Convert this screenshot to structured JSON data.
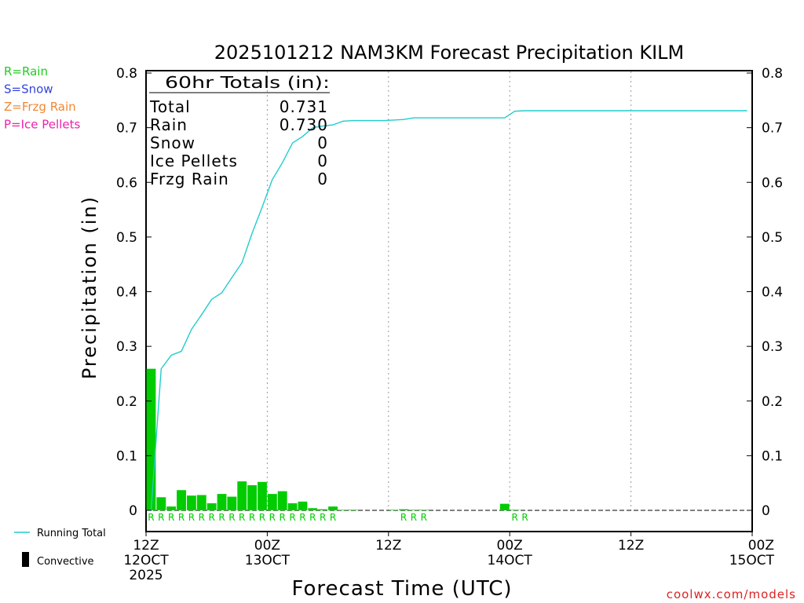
{
  "chart_data": {
    "type": "bar",
    "title": "2025101212 NAM3KM Forecast Precipitation KILM",
    "xlabel": "Forecast Time (UTC)",
    "ylabel": "Precipitation (in)",
    "ylim": [
      0,
      0.8
    ],
    "xlim_hours": [
      0,
      60
    ],
    "y_ticks": [
      0,
      0.1,
      0.2,
      0.3,
      0.4,
      0.5,
      0.6,
      0.7,
      0.8
    ],
    "y_tick_labels": [
      "0",
      "0.1",
      "0.2",
      "0.3",
      "0.4",
      "0.5",
      "0.6",
      "0.7",
      "0.8"
    ],
    "x_ticks": [
      {
        "hour": 0,
        "lines": [
          "12Z",
          "12OCT",
          "2025"
        ]
      },
      {
        "hour": 12,
        "lines": [
          "00Z",
          "13OCT"
        ]
      },
      {
        "hour": 24,
        "lines": [
          "12Z"
        ]
      },
      {
        "hour": 36,
        "lines": [
          "00Z",
          "14OCT"
        ]
      },
      {
        "hour": 48,
        "lines": [
          "12Z"
        ]
      },
      {
        "hour": 60,
        "lines": [
          "00Z",
          "15OCT"
        ]
      }
    ],
    "legend_types": [
      {
        "text": "R=Rain",
        "color": "#22cc22"
      },
      {
        "text": "S=Snow",
        "color": "#3344dd"
      },
      {
        "text": "Z=Frzg Rain",
        "color": "#ee8833"
      },
      {
        "text": "P=Ice Pellets",
        "color": "#ee22aa"
      }
    ],
    "legend_lines": {
      "running_total": "Running Total",
      "convective": "Convective"
    },
    "totals": {
      "heading": "60hr Totals (in):",
      "rows": [
        {
          "label": "Total",
          "value": "0.731"
        },
        {
          "label": "Rain",
          "value": "0.730"
        },
        {
          "label": "Snow",
          "value": "0"
        },
        {
          "label": "Ice Pellets",
          "value": "0"
        },
        {
          "label": "Frzg Rain",
          "value": "0"
        }
      ]
    },
    "bar_color": "#00cc00",
    "line_color": "#22cccc",
    "hourly_hours": [
      1,
      2,
      3,
      4,
      5,
      6,
      7,
      8,
      9,
      10,
      11,
      12,
      13,
      14,
      15,
      16,
      17,
      18,
      19,
      20,
      21,
      24,
      25,
      26,
      27,
      28,
      36,
      37
    ],
    "hourly_values": [
      0.259,
      0.024,
      0.007,
      0.037,
      0.027,
      0.028,
      0.013,
      0.03,
      0.025,
      0.053,
      0.046,
      0.052,
      0.03,
      0.035,
      0.013,
      0.016,
      0.004,
      0.002,
      0.007,
      0.001,
      0.001,
      0.0,
      0.001,
      0.002,
      0.001,
      0.001,
      0.012,
      0.001
    ],
    "ptype_marks": {
      "symbol": "R",
      "hours": [
        1,
        2,
        3,
        4,
        5,
        6,
        7,
        8,
        9,
        10,
        11,
        12,
        13,
        14,
        15,
        16,
        17,
        18,
        19,
        26,
        27,
        28,
        37,
        38
      ]
    },
    "running_total_hours": [
      1,
      2,
      3,
      4,
      5,
      6,
      7,
      8,
      9,
      10,
      11,
      12,
      13,
      14,
      15,
      16,
      17,
      18,
      19,
      20,
      21,
      22,
      23,
      24,
      25,
      26,
      27,
      28,
      29,
      30,
      31,
      32,
      33,
      34,
      35,
      36,
      37,
      38,
      39,
      40,
      41,
      42,
      43,
      44,
      45,
      46,
      47,
      48,
      49,
      50,
      51,
      52,
      53,
      54,
      55,
      56,
      57,
      58,
      59,
      60
    ],
    "running_total_values": [
      0.0,
      0.259,
      0.284,
      0.291,
      0.331,
      0.358,
      0.386,
      0.398,
      0.426,
      0.453,
      0.507,
      0.555,
      0.605,
      0.636,
      0.672,
      0.684,
      0.7,
      0.703,
      0.705,
      0.712,
      0.713,
      0.713,
      0.713,
      0.713,
      0.714,
      0.715,
      0.718,
      0.718,
      0.718,
      0.718,
      0.718,
      0.718,
      0.718,
      0.718,
      0.718,
      0.718,
      0.73,
      0.731,
      0.731,
      0.731,
      0.731,
      0.731,
      0.731,
      0.731,
      0.731,
      0.731,
      0.731,
      0.731,
      0.731,
      0.731,
      0.731,
      0.731,
      0.731,
      0.731,
      0.731,
      0.731,
      0.731,
      0.731,
      0.731,
      0.731
    ],
    "credit": "coolwx.com/models"
  }
}
